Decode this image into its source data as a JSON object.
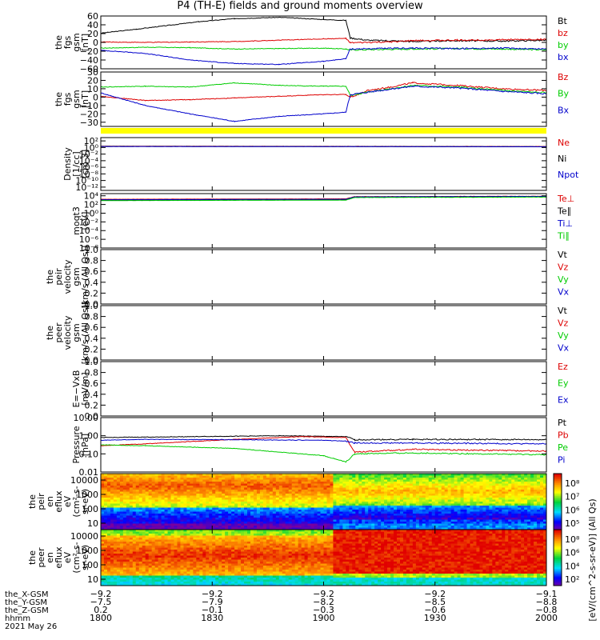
{
  "title": "P4 (TH-E) fields and ground moments overview",
  "colors": {
    "black": "#000000",
    "red": "#dd0000",
    "green": "#00cc00",
    "blue": "#0000cc",
    "yellow": "#ffff00"
  },
  "chart_data": [
    {
      "type": "line",
      "ylabel": [
        "the",
        "fgs",
        "gsm",
        "[nT]"
      ],
      "ylim": [
        -60,
        60
      ],
      "yticks": [
        "60",
        "40",
        "20",
        "0",
        "−20",
        "−40",
        "−60"
      ],
      "ytick_values": [
        60,
        40,
        20,
        0,
        -20,
        -40,
        -60
      ],
      "series": [
        {
          "name": "Bt",
          "color": "black",
          "points": [
            [
              0,
              21
            ],
            [
              8,
              30
            ],
            [
              22,
              47
            ],
            [
              30,
              54
            ],
            [
              40,
              57
            ],
            [
              50,
              52
            ],
            [
              55,
              50
            ],
            [
              56,
              10
            ],
            [
              60,
              5
            ],
            [
              64,
              4
            ],
            [
              70,
              2
            ],
            [
              80,
              4
            ],
            [
              90,
              3
            ],
            [
              100,
              5
            ]
          ]
        },
        {
          "name": "bz",
          "color": "red",
          "points": [
            [
              0,
              1
            ],
            [
              10,
              0
            ],
            [
              20,
              1
            ],
            [
              30,
              2
            ],
            [
              40,
              5
            ],
            [
              50,
              8
            ],
            [
              55,
              9
            ],
            [
              56,
              -1
            ],
            [
              65,
              1
            ],
            [
              70,
              4
            ],
            [
              80,
              5
            ],
            [
              90,
              6
            ],
            [
              100,
              7
            ]
          ]
        },
        {
          "name": "by",
          "color": "green",
          "points": [
            [
              0,
              -13
            ],
            [
              10,
              -11
            ],
            [
              20,
              -12
            ],
            [
              30,
              -15
            ],
            [
              40,
              -14
            ],
            [
              50,
              -13
            ],
            [
              55,
              -15
            ],
            [
              56,
              -17
            ],
            [
              70,
              -15
            ],
            [
              80,
              -14
            ],
            [
              90,
              -15
            ],
            [
              100,
              -17
            ]
          ]
        },
        {
          "name": "bx",
          "color": "blue",
          "points": [
            [
              0,
              -18
            ],
            [
              10,
              -25
            ],
            [
              20,
              -40
            ],
            [
              30,
              -48
            ],
            [
              40,
              -50
            ],
            [
              50,
              -43
            ],
            [
              55,
              -37
            ],
            [
              56,
              -15
            ],
            [
              70,
              -13
            ],
            [
              80,
              -14
            ],
            [
              90,
              -13
            ],
            [
              100,
              -15
            ]
          ]
        }
      ]
    },
    {
      "type": "line",
      "ylabel": [
        "the",
        "fgs",
        "gsm",
        "[nT]"
      ],
      "ylim": [
        -35,
        30
      ],
      "yticks": [
        "30",
        "20",
        "10",
        "0",
        "−10",
        "−20",
        "−30"
      ],
      "ytick_values": [
        30,
        20,
        10,
        0,
        -10,
        -20,
        -30
      ],
      "series": [
        {
          "name": "Bz",
          "color": "red",
          "points": [
            [
              0,
              1
            ],
            [
              10,
              -4
            ],
            [
              20,
              -3
            ],
            [
              30,
              -1
            ],
            [
              40,
              1
            ],
            [
              50,
              3
            ],
            [
              55,
              3
            ],
            [
              56,
              0
            ],
            [
              60,
              8
            ],
            [
              65,
              12
            ],
            [
              70,
              17
            ],
            [
              80,
              14
            ],
            [
              90,
              10
            ],
            [
              100,
              8
            ]
          ]
        },
        {
          "name": "By",
          "color": "green",
          "points": [
            [
              0,
              12
            ],
            [
              10,
              13
            ],
            [
              20,
              12
            ],
            [
              30,
              17
            ],
            [
              40,
              14
            ],
            [
              50,
              13
            ],
            [
              55,
              13
            ],
            [
              56,
              2
            ],
            [
              60,
              6
            ],
            [
              70,
              14
            ],
            [
              80,
              12
            ],
            [
              90,
              8
            ],
            [
              100,
              5
            ]
          ]
        },
        {
          "name": "Bx",
          "color": "blue",
          "points": [
            [
              0,
              5
            ],
            [
              10,
              -10
            ],
            [
              20,
              -20
            ],
            [
              30,
              -29
            ],
            [
              40,
              -23
            ],
            [
              50,
              -20
            ],
            [
              55,
              -18
            ],
            [
              56,
              3
            ],
            [
              60,
              6
            ],
            [
              70,
              13
            ],
            [
              80,
              11
            ],
            [
              90,
              7
            ],
            [
              100,
              4
            ]
          ]
        }
      ]
    },
    {
      "type": "line",
      "ylabel": [
        "Density",
        "[1/cc]",
        "[cm-3]"
      ],
      "yscale": "log",
      "yticks": [
        "10²",
        "10⁰",
        "10⁻²",
        "10⁻⁴",
        "10⁻⁶",
        "10⁻⁸",
        "10⁻¹⁰",
        "10⁻¹²"
      ],
      "ytick_values": [
        2,
        0,
        -2,
        -4,
        -6,
        -8,
        -10,
        -12
      ],
      "ylim": [
        -13,
        3
      ],
      "series": [
        {
          "name": "Ne",
          "color": "red",
          "points": [
            [
              0,
              0.4
            ],
            [
              50,
              0.35
            ],
            [
              100,
              0.3
            ]
          ]
        },
        {
          "name": "Ni",
          "color": "black",
          "points": [
            [
              0,
              0.35
            ],
            [
              50,
              0.3
            ],
            [
              100,
              0.25
            ]
          ]
        },
        {
          "name": "Npot",
          "color": "blue",
          "points": [
            [
              0,
              0.3
            ],
            [
              50,
              0.28
            ],
            [
              100,
              0.22
            ]
          ]
        }
      ]
    },
    {
      "type": "line",
      "ylabel": [
        "moqt3",
        "[eV]"
      ],
      "yscale": "log",
      "yticks": [
        "10⁴",
        "10²",
        "10⁰",
        "10⁻²",
        "10⁻⁴",
        "10⁻⁶",
        "10⁻⁸"
      ],
      "ytick_values": [
        4,
        2,
        0,
        -2,
        -4,
        -6,
        -8
      ],
      "ylim": [
        -8,
        4.5
      ],
      "series": [
        {
          "name": "Te⊥",
          "color": "red",
          "points": [
            [
              0,
              3.2
            ],
            [
              55,
              3.3
            ],
            [
              57,
              3.8
            ],
            [
              100,
              3.9
            ]
          ]
        },
        {
          "name": "Te∥",
          "color": "black",
          "points": [
            [
              0,
              3.0
            ],
            [
              55,
              3.1
            ],
            [
              57,
              3.7
            ],
            [
              100,
              3.8
            ]
          ]
        },
        {
          "name": "Ti⊥",
          "color": "blue",
          "points": [
            [
              0,
              3.1
            ],
            [
              55,
              3.2
            ],
            [
              57,
              3.75
            ],
            [
              100,
              3.85
            ]
          ]
        },
        {
          "name": "Ti∥",
          "color": "green",
          "points": [
            [
              0,
              2.9
            ],
            [
              55,
              3.0
            ],
            [
              57,
              3.6
            ],
            [
              100,
              3.7
            ]
          ]
        }
      ]
    },
    {
      "type": "line",
      "ylabel": [
        "the",
        "peir",
        "velocity",
        "gsm",
        "[km/s (All Qs)]"
      ],
      "ylim": [
        0,
        1
      ],
      "yticks": [
        "1.0",
        "0.8",
        "0.6",
        "0.4",
        "0.2",
        "0.0"
      ],
      "ytick_values": [
        1,
        0.8,
        0.6,
        0.4,
        0.2,
        0
      ],
      "series": [
        {
          "name": "Vt",
          "color": "black",
          "points": []
        },
        {
          "name": "Vz",
          "color": "red",
          "points": []
        },
        {
          "name": "Vy",
          "color": "green",
          "points": []
        },
        {
          "name": "Vx",
          "color": "blue",
          "points": []
        }
      ]
    },
    {
      "type": "line",
      "ylabel": [
        "the",
        "peer",
        "velocity",
        "gsm",
        "[km/s (All Qs)]"
      ],
      "ylim": [
        0,
        1
      ],
      "yticks": [
        "1.0",
        "0.8",
        "0.6",
        "0.4",
        "0.2",
        "0.0"
      ],
      "ytick_values": [
        1,
        0.8,
        0.6,
        0.4,
        0.2,
        0
      ],
      "series": [
        {
          "name": "Vt",
          "color": "black",
          "points": []
        },
        {
          "name": "Vz",
          "color": "red",
          "points": []
        },
        {
          "name": "Vy",
          "color": "green",
          "points": []
        },
        {
          "name": "Vx",
          "color": "blue",
          "points": []
        }
      ]
    },
    {
      "type": "line",
      "ylabel": [
        "E=−VxB",
        "[mV/m]"
      ],
      "ylim": [
        0,
        1
      ],
      "yticks": [
        "1.0",
        "0.8",
        "0.6",
        "0.4",
        "0.2",
        "0.0"
      ],
      "ytick_values": [
        1,
        0.8,
        0.6,
        0.4,
        0.2,
        0
      ],
      "series": [
        {
          "name": "Ez",
          "color": "red",
          "points": []
        },
        {
          "name": "Ey",
          "color": "green",
          "points": []
        },
        {
          "name": "Ex",
          "color": "blue",
          "points": []
        }
      ]
    },
    {
      "type": "line",
      "ylabel": [
        "Pressure",
        "[nPa]"
      ],
      "yscale": "log",
      "yticks": [
        "10.00",
        "1.00",
        "0.10",
        "0.01"
      ],
      "ytick_values": [
        1,
        0,
        -1,
        -2
      ],
      "ylim": [
        -2,
        1
      ],
      "series": [
        {
          "name": "Pt",
          "color": "black",
          "points": [
            [
              0,
              -0.1
            ],
            [
              20,
              -0.05
            ],
            [
              40,
              0.0
            ],
            [
              55,
              -0.05
            ],
            [
              57,
              -0.22
            ],
            [
              70,
              -0.2
            ],
            [
              100,
              -0.22
            ]
          ]
        },
        {
          "name": "Pb",
          "color": "red",
          "points": [
            [
              0,
              -0.55
            ],
            [
              10,
              -0.45
            ],
            [
              30,
              -0.2
            ],
            [
              45,
              -0.05
            ],
            [
              55,
              -0.1
            ],
            [
              57,
              -0.9
            ],
            [
              70,
              -0.75
            ],
            [
              100,
              -0.85
            ]
          ]
        },
        {
          "name": "Pe",
          "color": "green",
          "points": [
            [
              0,
              -0.5
            ],
            [
              10,
              -0.55
            ],
            [
              30,
              -0.7
            ],
            [
              50,
              -1.1
            ],
            [
              55,
              -1.45
            ],
            [
              57,
              -1.0
            ],
            [
              70,
              -0.95
            ],
            [
              100,
              -1.05
            ]
          ]
        },
        {
          "name": "Pi",
          "color": "blue",
          "points": [
            [
              0,
              -0.25
            ],
            [
              10,
              -0.2
            ],
            [
              30,
              -0.22
            ],
            [
              50,
              -0.25
            ],
            [
              55,
              -0.3
            ],
            [
              57,
              -0.4
            ],
            [
              70,
              -0.4
            ],
            [
              100,
              -0.45
            ]
          ]
        }
      ]
    },
    {
      "type": "heatmap",
      "ylabel": [
        "the",
        "peir",
        "en",
        "eflux",
        "eV",
        "(cm²-s-",
        "sr-eV)"
      ],
      "yticks": [
        "10000",
        "1000",
        "100",
        "10"
      ],
      "colorbar_ticks": [
        "10⁸",
        "10⁷",
        "10⁶",
        "10⁵"
      ]
    },
    {
      "type": "heatmap",
      "ylabel": [
        "the",
        "peer",
        "en",
        "eflux",
        "eV",
        "(cm²-s-",
        "sr-eV)"
      ],
      "yticks": [
        "10000",
        "1000",
        "100",
        "10"
      ],
      "colorbar_ticks": [
        "10⁸",
        "10⁶",
        "10⁴",
        "10²"
      ]
    }
  ],
  "colorbar_label": "[eV/(cm^2-s-sr-eV)] (All Qs)",
  "xaxis": {
    "row_labels": [
      "the_X-GSM",
      "the_Y-GSM",
      "the_Z-GSM",
      "hhmm"
    ],
    "date": "2021 May 26",
    "columns": [
      [
        "−9.2",
        "−7.5",
        "0.2",
        "1800"
      ],
      [
        "−9.2",
        "−7.9",
        "−0.1",
        "1830"
      ],
      [
        "−9.2",
        "−8.2",
        "−0.3",
        "1900"
      ],
      [
        "−9.2",
        "−8.5",
        "−0.6",
        "1930"
      ],
      [
        "−9.1",
        "−8.8",
        "−0.8",
        "2000"
      ]
    ]
  }
}
